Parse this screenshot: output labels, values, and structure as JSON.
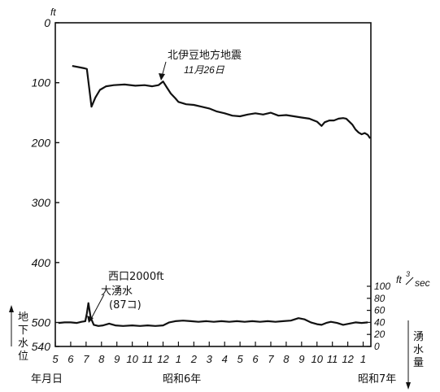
{
  "chart_data": {
    "type": "line",
    "left_axis": {
      "unit": "ft",
      "ticks": [
        "0",
        "100",
        "200",
        "300",
        "400",
        "500",
        "540"
      ],
      "tick_values": [
        0,
        100,
        200,
        300,
        400,
        500,
        540
      ],
      "range": [
        0,
        540
      ],
      "inverted": true,
      "label_chars": [
        "地",
        "下",
        "水",
        "位"
      ]
    },
    "right_axis": {
      "unit_main": "ft",
      "unit_sup": "3",
      "unit_sub": "sec",
      "ticks": [
        "100",
        "80",
        "60",
        "40",
        "20",
        "0"
      ],
      "tick_values": [
        100,
        80,
        60,
        40,
        20,
        0
      ],
      "range": [
        0,
        100
      ],
      "label_chars": [
        "湧",
        "水",
        "量"
      ]
    },
    "x_axis": {
      "months": [
        "5",
        "6",
        "7",
        "8",
        "9",
        "10",
        "11",
        "12",
        "1",
        "2",
        "3",
        "4",
        "5",
        "6",
        "7",
        "8",
        "9",
        "10",
        "11",
        "12",
        "1"
      ],
      "bottom_labels": {
        "left": "年月日",
        "middle": "昭和6年",
        "right": "昭和7年"
      }
    },
    "series": [
      {
        "name": "地下水位",
        "axis": "left",
        "points": [
          [
            6.1,
            72
          ],
          [
            6.5,
            74
          ],
          [
            6.9,
            76
          ],
          [
            7.05,
            77
          ],
          [
            7.35,
            140
          ],
          [
            7.6,
            125
          ],
          [
            7.9,
            112
          ],
          [
            8.3,
            106
          ],
          [
            8.8,
            104
          ],
          [
            9.5,
            103
          ],
          [
            10.2,
            105
          ],
          [
            10.8,
            104
          ],
          [
            11.3,
            106
          ],
          [
            11.7,
            104
          ],
          [
            12.0,
            98
          ],
          [
            12.25,
            108
          ],
          [
            12.5,
            118
          ],
          [
            12.8,
            126
          ],
          [
            13.0,
            132
          ],
          [
            13.5,
            136
          ],
          [
            14.0,
            137
          ],
          [
            14.5,
            140
          ],
          [
            15.0,
            143
          ],
          [
            15.5,
            148
          ],
          [
            16.0,
            151
          ],
          [
            16.5,
            155
          ],
          [
            17.0,
            156
          ],
          [
            17.5,
            153
          ],
          [
            18.0,
            151
          ],
          [
            18.5,
            153
          ],
          [
            19.0,
            150
          ],
          [
            19.5,
            155
          ],
          [
            20.0,
            154
          ],
          [
            20.5,
            156
          ],
          [
            21.0,
            158
          ],
          [
            21.5,
            160
          ],
          [
            22.0,
            165
          ],
          [
            22.3,
            172
          ],
          [
            22.5,
            166
          ],
          [
            22.8,
            163
          ],
          [
            23.1,
            163
          ],
          [
            23.4,
            160
          ],
          [
            23.7,
            159
          ],
          [
            23.9,
            160
          ],
          [
            24.1,
            165
          ],
          [
            24.3,
            170
          ],
          [
            24.5,
            178
          ],
          [
            24.7,
            183
          ],
          [
            24.9,
            186
          ],
          [
            25.1,
            184
          ],
          [
            25.3,
            187
          ],
          [
            25.45,
            193
          ]
        ]
      },
      {
        "name": "湧水量",
        "axis": "right",
        "points": [
          [
            5.2,
            39
          ],
          [
            5.6,
            40
          ],
          [
            6.0,
            40
          ],
          [
            6.4,
            39
          ],
          [
            6.7,
            41
          ],
          [
            6.95,
            42
          ],
          [
            7.05,
            55
          ],
          [
            7.15,
            72
          ],
          [
            7.3,
            48
          ],
          [
            7.5,
            36
          ],
          [
            7.8,
            34
          ],
          [
            8.1,
            35
          ],
          [
            8.5,
            38
          ],
          [
            8.9,
            35
          ],
          [
            9.4,
            34
          ],
          [
            10.0,
            35
          ],
          [
            10.5,
            34
          ],
          [
            11.0,
            35
          ],
          [
            11.5,
            34
          ],
          [
            12.0,
            35
          ],
          [
            12.4,
            40
          ],
          [
            12.8,
            42
          ],
          [
            13.3,
            43
          ],
          [
            13.8,
            42
          ],
          [
            14.3,
            41
          ],
          [
            14.8,
            42
          ],
          [
            15.3,
            41
          ],
          [
            15.8,
            42
          ],
          [
            16.3,
            41
          ],
          [
            16.8,
            42
          ],
          [
            17.3,
            41
          ],
          [
            17.8,
            42
          ],
          [
            18.3,
            41
          ],
          [
            18.8,
            42
          ],
          [
            19.3,
            41
          ],
          [
            19.8,
            42
          ],
          [
            20.3,
            43
          ],
          [
            20.8,
            47
          ],
          [
            21.2,
            45
          ],
          [
            21.6,
            40
          ],
          [
            22.0,
            37
          ],
          [
            22.3,
            36
          ],
          [
            22.6,
            39
          ],
          [
            22.9,
            41
          ],
          [
            23.3,
            39
          ],
          [
            23.7,
            36
          ],
          [
            24.1,
            38
          ],
          [
            24.5,
            40
          ],
          [
            24.9,
            39
          ],
          [
            25.3,
            40
          ]
        ]
      }
    ],
    "annotations": [
      {
        "lines": [
          "北伊豆地方地震",
          "11月26日"
        ],
        "target": [
          12.0,
          98
        ],
        "axis": "left"
      },
      {
        "lines": [
          "西口2000ft",
          "大湧水",
          "(87コ)"
        ],
        "target": [
          7.15,
          72
        ],
        "axis": "right"
      }
    ]
  }
}
